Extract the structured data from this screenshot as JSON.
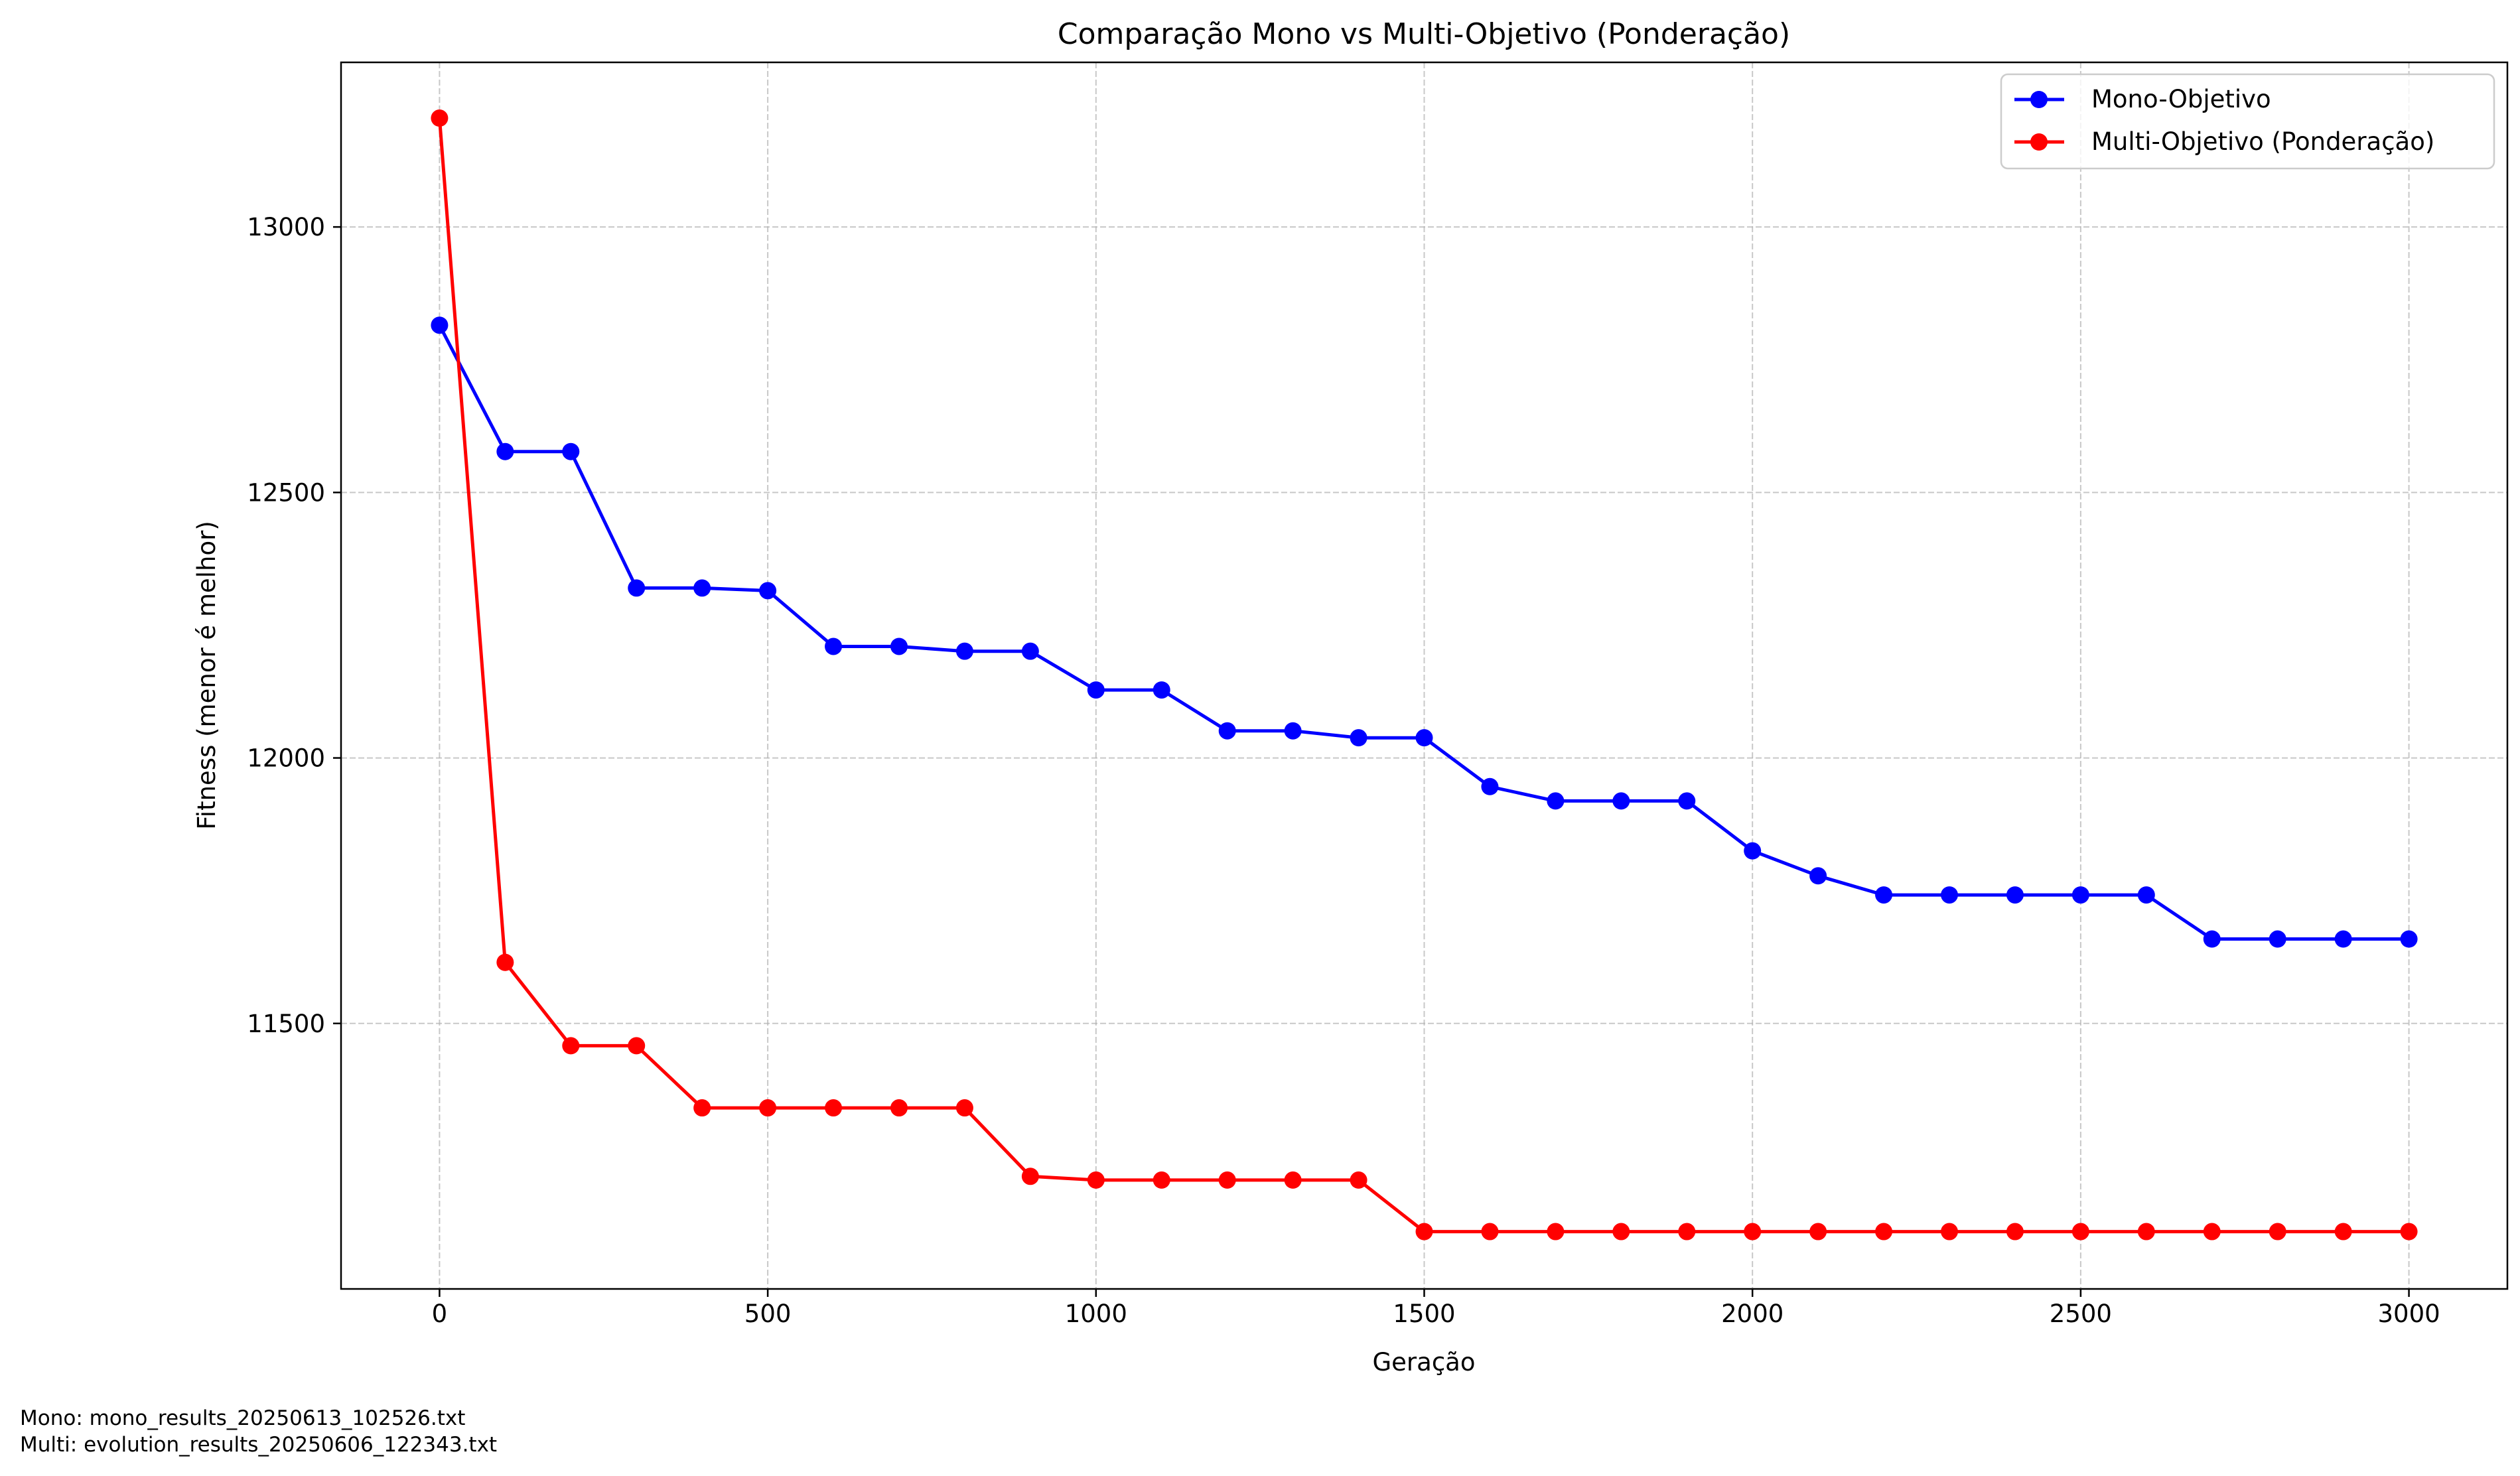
{
  "chart_data": {
    "type": "line",
    "title": "Comparação Mono vs Multi-Objetivo (Ponderação)",
    "xlabel": "Geração",
    "ylabel": "Fitness (menor é melhor)",
    "xlim": [
      -150,
      3150
    ],
    "ylim": [
      11000,
      13310
    ],
    "x_ticks": [
      0,
      500,
      1000,
      1500,
      2000,
      2500,
      3000
    ],
    "y_ticks": [
      11500,
      12000,
      12500,
      13000
    ],
    "grid": true,
    "grid_style": "dashed",
    "legend_position": "top-right",
    "x": [
      0,
      100,
      200,
      300,
      400,
      500,
      600,
      700,
      800,
      900,
      1000,
      1100,
      1200,
      1300,
      1400,
      1500,
      1600,
      1700,
      1800,
      1900,
      2000,
      2100,
      2200,
      2300,
      2400,
      2500,
      2600,
      2700,
      2800,
      2900,
      3000
    ],
    "series": [
      {
        "name": "Mono-Objetivo",
        "color": "#0000ff",
        "values": [
          12815,
          12577,
          12577,
          12320,
          12320,
          12315,
          12210,
          12210,
          12201,
          12201,
          12128,
          12128,
          12051,
          12051,
          12038,
          12038,
          11946,
          11919,
          11919,
          11919,
          11825,
          11778,
          11742,
          11742,
          11742,
          11742,
          11742,
          11659,
          11659,
          11659,
          11659
        ]
      },
      {
        "name": "Multi-Objetivo (Ponderação)",
        "color": "#ff0000",
        "values": [
          13205,
          11615,
          11458,
          11458,
          11341,
          11341,
          11341,
          11341,
          11341,
          11212,
          11205,
          11205,
          11205,
          11205,
          11205,
          11108,
          11108,
          11108,
          11108,
          11108,
          11108,
          11108,
          11108,
          11108,
          11108,
          11108,
          11108,
          11108,
          11108,
          11108,
          11108
        ]
      }
    ]
  },
  "footnotes": {
    "mono": "Mono: mono_results_20250613_102526.txt",
    "multi": "Multi: evolution_results_20250606_122343.txt"
  }
}
